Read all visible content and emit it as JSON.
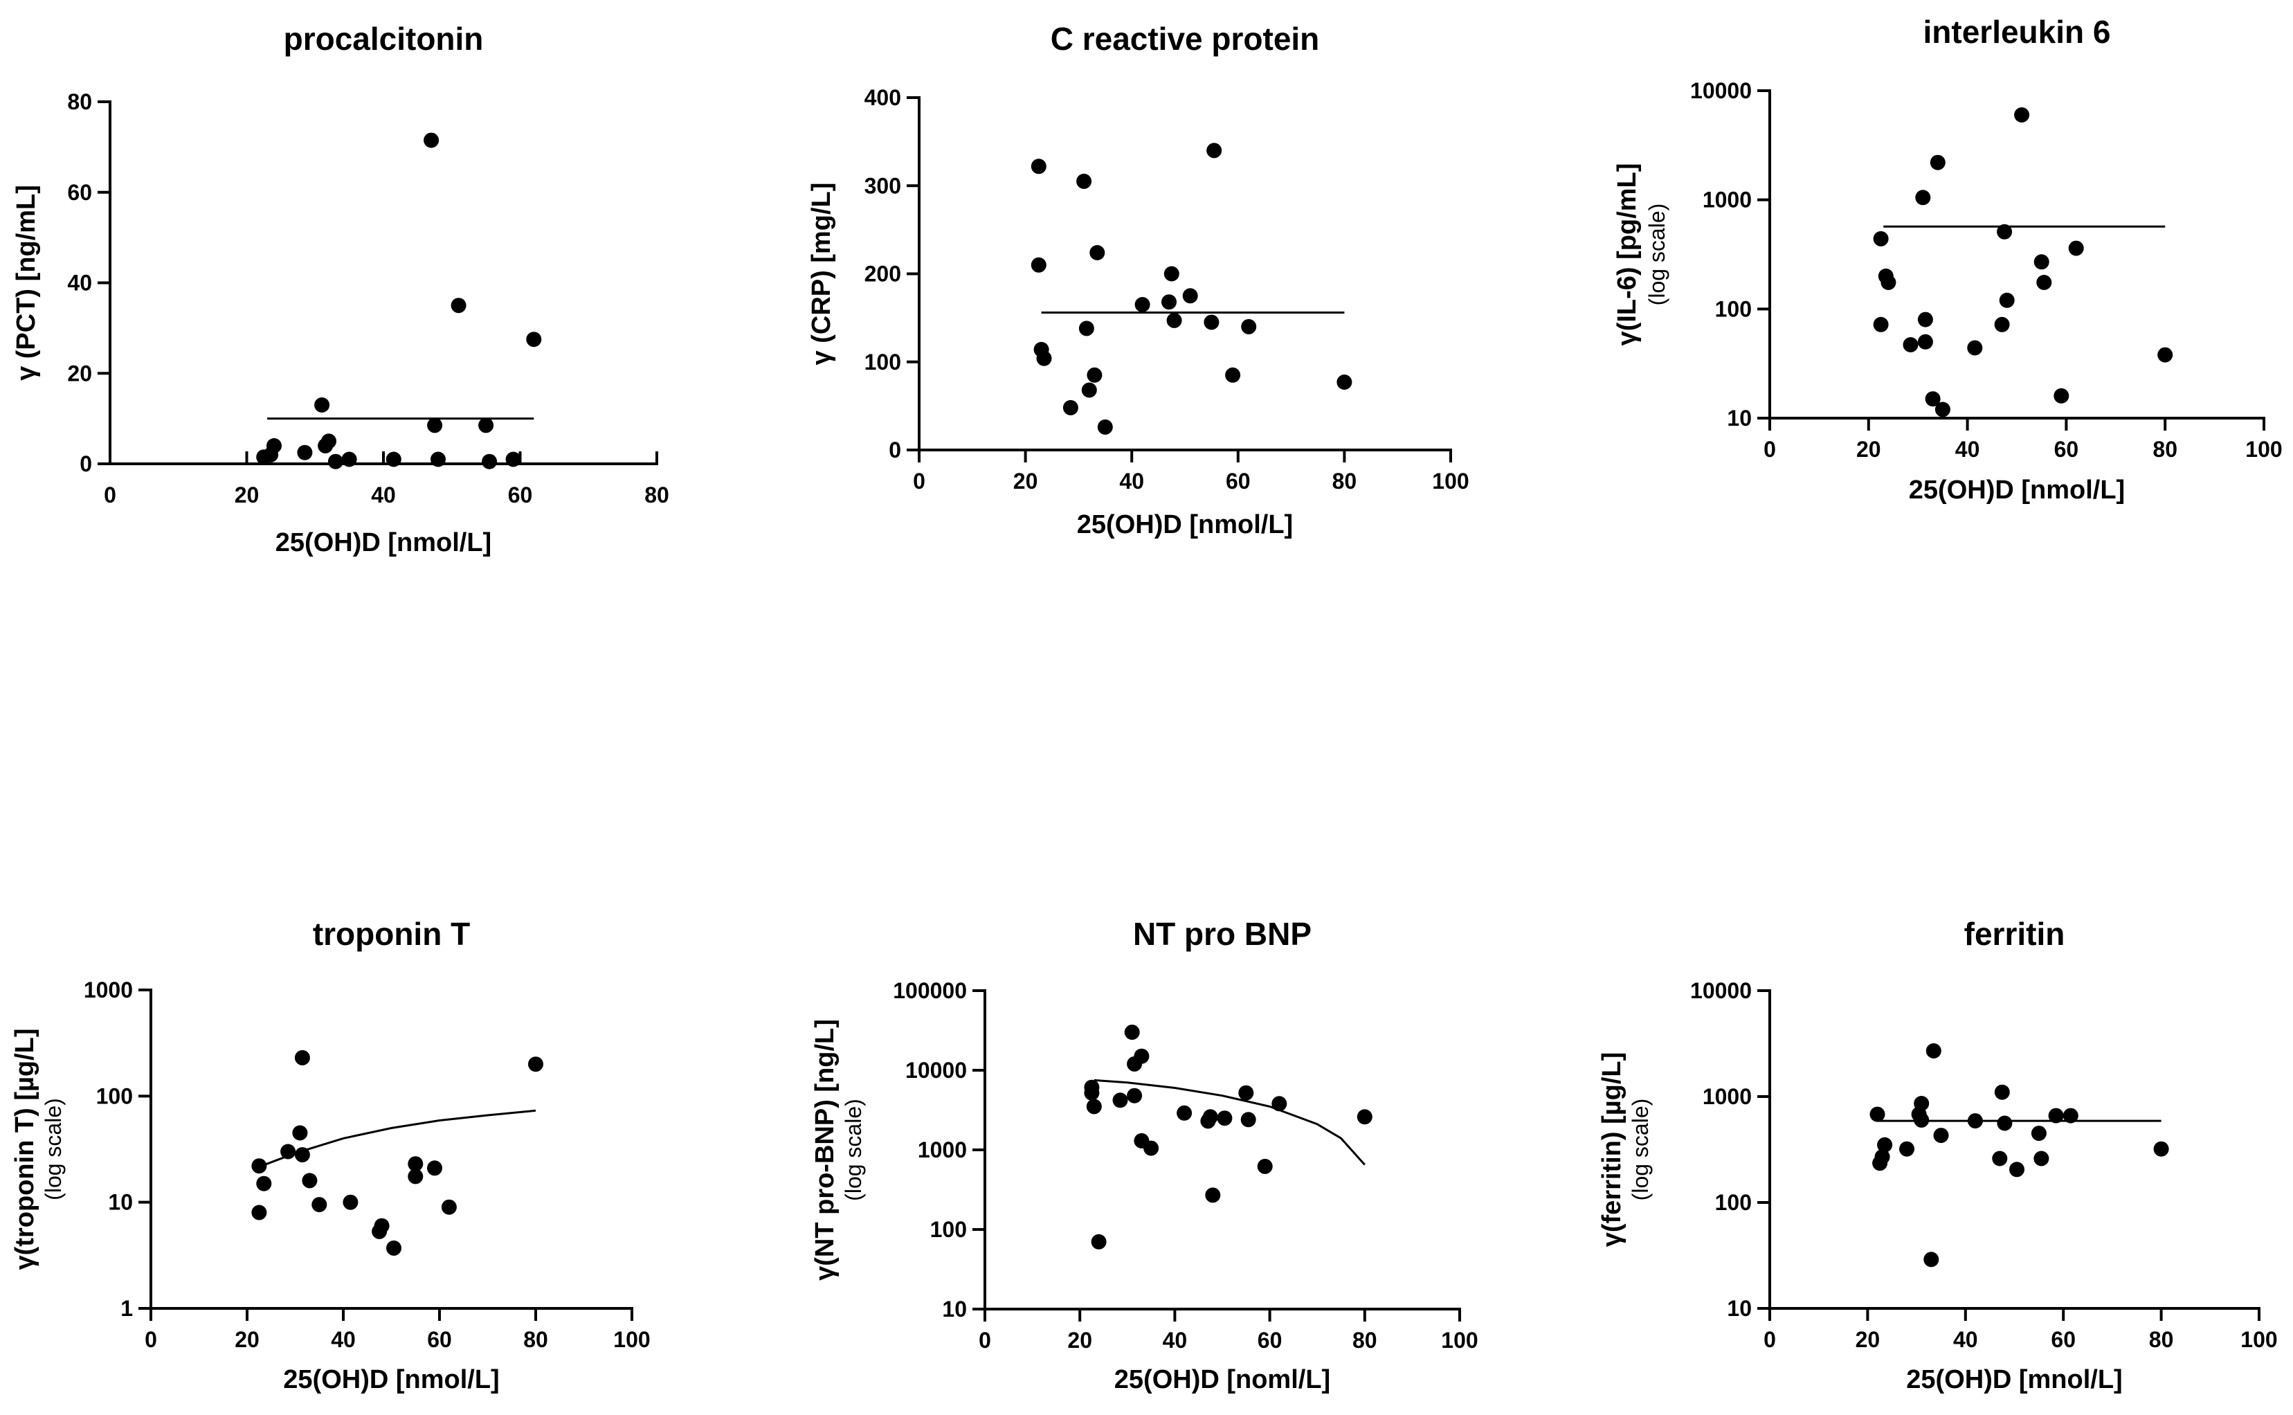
{
  "chart_data": [
    {
      "type": "scatter",
      "title": "procalcitonin",
      "xlabel": "25(OH)D [nmol/L]",
      "ylabel": "γ (PCT) [ng/mL]",
      "ylabel_sub": "",
      "yscale": "linear",
      "xlim": [
        0,
        80
      ],
      "ylim": [
        0,
        80
      ],
      "xticks": [
        0,
        20,
        40,
        60,
        80
      ],
      "yticks": [
        0,
        20,
        40,
        60,
        80
      ],
      "ytick_labels": [
        "0",
        "20",
        "40",
        "60",
        "80"
      ],
      "points": [
        [
          22.5,
          1.5
        ],
        [
          23.5,
          2
        ],
        [
          24,
          4
        ],
        [
          28.5,
          2.5
        ],
        [
          31,
          13
        ],
        [
          31.5,
          4
        ],
        [
          32,
          5
        ],
        [
          33,
          0.5
        ],
        [
          35,
          1
        ],
        [
          41.5,
          1
        ],
        [
          47,
          71.5
        ],
        [
          47.5,
          8.5
        ],
        [
          48,
          1
        ],
        [
          51,
          35
        ],
        [
          55,
          8.5
        ],
        [
          55.5,
          0.5
        ],
        [
          59,
          1
        ],
        [
          62,
          27.5
        ]
      ],
      "fit": [
        [
          23,
          10
        ],
        [
          62,
          10
        ]
      ]
    },
    {
      "type": "scatter",
      "title": "C reactive protein",
      "xlabel": "25(OH)D [nmol/L]",
      "ylabel": "γ (CRP) [mg/L]",
      "ylabel_sub": "",
      "yscale": "linear",
      "xlim": [
        0,
        100
      ],
      "ylim": [
        0,
        400
      ],
      "xticks": [
        0,
        20,
        40,
        60,
        80,
        100
      ],
      "yticks": [
        0,
        100,
        200,
        300,
        400
      ],
      "ytick_labels": [
        "0",
        "100",
        "200",
        "300",
        "400"
      ],
      "points": [
        [
          22.5,
          322
        ],
        [
          22.5,
          210
        ],
        [
          23,
          114
        ],
        [
          23.5,
          104
        ],
        [
          28.5,
          48
        ],
        [
          31,
          305
        ],
        [
          31.5,
          138
        ],
        [
          32,
          68
        ],
        [
          33,
          85
        ],
        [
          33.5,
          224
        ],
        [
          35,
          26
        ],
        [
          42,
          165
        ],
        [
          47,
          168
        ],
        [
          47.5,
          200
        ],
        [
          48,
          147
        ],
        [
          51,
          175
        ],
        [
          55,
          145
        ],
        [
          55.5,
          340
        ],
        [
          59,
          85
        ],
        [
          62,
          140
        ],
        [
          80,
          77
        ]
      ],
      "fit": [
        [
          23,
          156
        ],
        [
          80,
          156
        ]
      ]
    },
    {
      "type": "scatter",
      "title": "interleukin 6",
      "xlabel": "25(OH)D [nmol/L]",
      "ylabel": "γ(IL-6) [pg/mL]",
      "ylabel_sub": "(log scale)",
      "yscale": "log",
      "xlim": [
        0,
        100
      ],
      "ylim": [
        10,
        10000
      ],
      "xticks": [
        0,
        20,
        40,
        60,
        80,
        100
      ],
      "yticks": [
        10,
        100,
        1000,
        10000
      ],
      "ytick_labels": [
        "10",
        "100",
        "1000",
        "10000"
      ],
      "points": [
        [
          22.5,
          440
        ],
        [
          22.5,
          72
        ],
        [
          23.5,
          200
        ],
        [
          24,
          175
        ],
        [
          28.5,
          47
        ],
        [
          31,
          1050
        ],
        [
          31.5,
          80
        ],
        [
          31.5,
          50
        ],
        [
          33,
          15
        ],
        [
          34,
          2200
        ],
        [
          35,
          12
        ],
        [
          41.5,
          44
        ],
        [
          47,
          72
        ],
        [
          47.5,
          510
        ],
        [
          48,
          120
        ],
        [
          51,
          6000
        ],
        [
          55,
          270
        ],
        [
          55.5,
          175
        ],
        [
          59,
          16
        ],
        [
          62,
          360
        ],
        [
          80,
          38
        ]
      ],
      "fit": [
        [
          23,
          570
        ],
        [
          80,
          570
        ]
      ]
    },
    {
      "type": "scatter",
      "title": "troponin T",
      "xlabel": "25(OH)D [nmol/L]",
      "ylabel": "γ(troponin T) [µg/L]",
      "ylabel_sub": "(log scale)",
      "yscale": "log",
      "xlim": [
        0,
        100
      ],
      "ylim": [
        1,
        1000
      ],
      "xticks": [
        0,
        20,
        40,
        60,
        80,
        100
      ],
      "yticks": [
        1,
        10,
        100,
        1000
      ],
      "ytick_labels": [
        "1",
        "10",
        "100",
        "1000"
      ],
      "points": [
        [
          22.5,
          22
        ],
        [
          22.5,
          8
        ],
        [
          23.5,
          15
        ],
        [
          28.5,
          30
        ],
        [
          31,
          45
        ],
        [
          31.5,
          230
        ],
        [
          31.5,
          28
        ],
        [
          33,
          16
        ],
        [
          35,
          9.5
        ],
        [
          41.5,
          10
        ],
        [
          47.5,
          5.3
        ],
        [
          48,
          6
        ],
        [
          50.5,
          3.7
        ],
        [
          55,
          23
        ],
        [
          55,
          17.5
        ],
        [
          59,
          21
        ],
        [
          62,
          9
        ],
        [
          80,
          200
        ]
      ],
      "fit": [
        [
          23,
          22
        ],
        [
          30,
          29
        ],
        [
          40,
          40
        ],
        [
          50,
          50
        ],
        [
          60,
          59
        ],
        [
          70,
          66
        ],
        [
          80,
          73
        ]
      ]
    },
    {
      "type": "scatter",
      "title": "NT pro BNP",
      "xlabel": "25(OH)D [noml/L]",
      "ylabel": "γ(NT pro-BNP) [ng/L]",
      "ylabel_sub": "(log scale)",
      "yscale": "log",
      "xlim": [
        0,
        100
      ],
      "ylim": [
        10,
        100000
      ],
      "xticks": [
        0,
        20,
        40,
        60,
        80,
        100
      ],
      "yticks": [
        10,
        100,
        1000,
        10000,
        100000
      ],
      "ytick_labels": [
        "10",
        "100",
        "1000",
        "10000",
        "100000"
      ],
      "points": [
        [
          22.5,
          5200
        ],
        [
          22.5,
          6100
        ],
        [
          23,
          3500
        ],
        [
          24,
          70
        ],
        [
          28.5,
          4200
        ],
        [
          31,
          30000
        ],
        [
          31.5,
          4800
        ],
        [
          31.5,
          12000
        ],
        [
          33,
          15000
        ],
        [
          33,
          1300
        ],
        [
          35,
          1050
        ],
        [
          42,
          2900
        ],
        [
          47,
          2300
        ],
        [
          47.5,
          2600
        ],
        [
          48,
          270
        ],
        [
          50.5,
          2500
        ],
        [
          55,
          5200
        ],
        [
          55.5,
          2400
        ],
        [
          59,
          620
        ],
        [
          62,
          3800
        ],
        [
          80,
          2600
        ]
      ],
      "fit": [
        [
          23,
          7500
        ],
        [
          30,
          7000
        ],
        [
          40,
          6000
        ],
        [
          50,
          4800
        ],
        [
          60,
          3500
        ],
        [
          70,
          2100
        ],
        [
          75,
          1400
        ],
        [
          80,
          650
        ]
      ]
    },
    {
      "type": "scatter",
      "title": "ferritin",
      "xlabel": "25(OH)D [mnol/L]",
      "ylabel": "γ(ferritin) [µg/L]",
      "ylabel_sub": "(log scale)",
      "yscale": "log",
      "xlim": [
        0,
        100
      ],
      "ylim": [
        10,
        10000
      ],
      "xticks": [
        0,
        20,
        40,
        60,
        80,
        100
      ],
      "yticks": [
        10,
        100,
        1000,
        10000
      ],
      "ytick_labels": [
        "10",
        "100",
        "1000",
        "10000"
      ],
      "points": [
        [
          22,
          680
        ],
        [
          22.5,
          235
        ],
        [
          23,
          270
        ],
        [
          23.5,
          350
        ],
        [
          28,
          320
        ],
        [
          30.5,
          680
        ],
        [
          31,
          860
        ],
        [
          31,
          600
        ],
        [
          33,
          29
        ],
        [
          33.5,
          2700
        ],
        [
          35,
          430
        ],
        [
          42,
          590
        ],
        [
          47,
          260
        ],
        [
          47.5,
          1100
        ],
        [
          48,
          560
        ],
        [
          50.5,
          205
        ],
        [
          55,
          450
        ],
        [
          55.5,
          260
        ],
        [
          58.5,
          660
        ],
        [
          61.5,
          660
        ],
        [
          80,
          320
        ]
      ],
      "fit": [
        [
          22,
          590
        ],
        [
          80,
          590
        ]
      ]
    }
  ]
}
